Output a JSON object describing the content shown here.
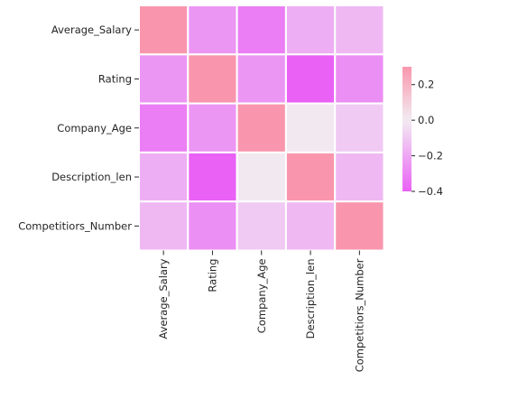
{
  "chart_data": {
    "type": "heatmap",
    "title": "",
    "xlabel": "",
    "ylabel": "",
    "categories_x": [
      "Average_Salary",
      "Rating",
      "Company_Age",
      "Description_len",
      "Competitiors_Number"
    ],
    "categories_y": [
      "Average_Salary",
      "Rating",
      "Company_Age",
      "Description_len",
      "Competitiors_Number"
    ],
    "values": [
      [
        1.0,
        -0.25,
        -0.32,
        -0.18,
        -0.15
      ],
      [
        -0.25,
        1.0,
        -0.25,
        -0.4,
        -0.27
      ],
      [
        -0.32,
        -0.25,
        1.0,
        0.01,
        -0.1
      ],
      [
        -0.18,
        -0.4,
        0.01,
        1.0,
        -0.15
      ],
      [
        -0.15,
        -0.27,
        -0.1,
        -0.15,
        1.0
      ]
    ],
    "colorbar": {
      "vmin": -0.4,
      "vmax": 0.3,
      "ticks": [
        0.2,
        0.0,
        -0.2,
        -0.4
      ],
      "tick_labels": [
        "0.2",
        "0.0",
        "−0.2",
        "−0.4"
      ],
      "colors": {
        "low": "#e962f5",
        "mid": "#f2ecf2",
        "high": "#f996ad"
      }
    },
    "grid": true,
    "cell_border_color": "#ffffff"
  }
}
